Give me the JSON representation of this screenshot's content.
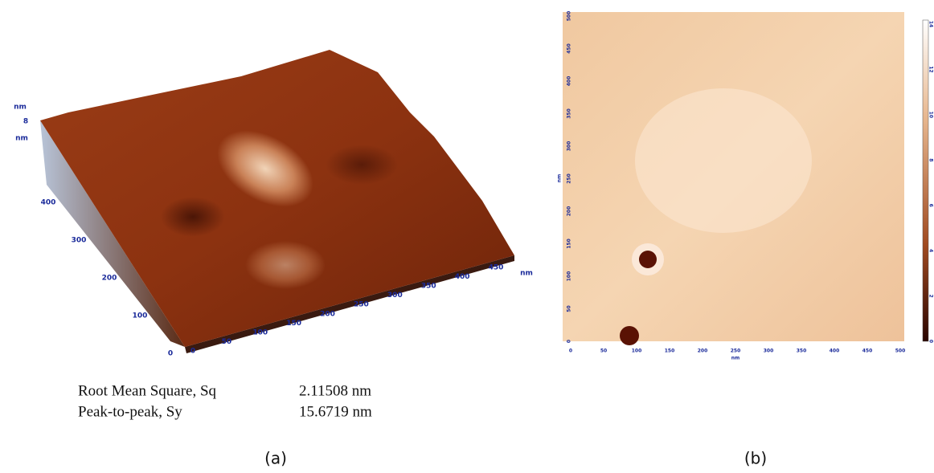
{
  "panel_a": {
    "z_axis_label_top": "nm",
    "z_axis_tick": "8",
    "z_axis_label_bottom": "nm",
    "y_ticks": [
      "400",
      "300",
      "200",
      "100",
      "0"
    ],
    "x_ticks": [
      "0",
      "50",
      "100",
      "150",
      "200",
      "250",
      "300",
      "350",
      "400",
      "450"
    ],
    "x_axis_label": "nm",
    "stats": [
      {
        "label": "Root Mean Square, Sq",
        "value": "2.11508 nm"
      },
      {
        "label": "Peak-to-peak, Sy",
        "value": "15.6719 nm"
      }
    ],
    "caption": "(a)"
  },
  "panel_b": {
    "y_ticks": [
      "0",
      "50",
      "100",
      "150",
      "200",
      "250",
      "300",
      "350",
      "400",
      "450",
      "500"
    ],
    "y_axis_label": "nm",
    "x_ticks": [
      "0",
      "50",
      "100",
      "150",
      "200",
      "250",
      "300",
      "350",
      "400",
      "450",
      "500"
    ],
    "x_axis_label": "nm",
    "colorbar_ticks": [
      "0",
      "2",
      "4",
      "6",
      "8",
      "10",
      "12",
      "14"
    ],
    "caption": "(b)"
  }
}
